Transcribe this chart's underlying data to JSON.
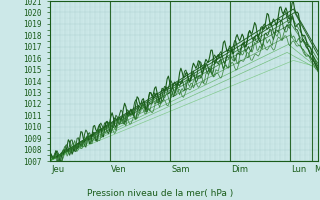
{
  "title": "Pression niveau de la mer( hPa )",
  "ylim": [
    1007,
    1021
  ],
  "yticks": [
    1007,
    1008,
    1009,
    1010,
    1011,
    1012,
    1013,
    1014,
    1015,
    1016,
    1017,
    1018,
    1019,
    1020,
    1021
  ],
  "x_day_labels": [
    "Jeu",
    "Ven",
    "Sam",
    "Dim",
    "Lun",
    "Ma"
  ],
  "x_day_positions": [
    0,
    48,
    96,
    144,
    192,
    210
  ],
  "n_points": 216,
  "bg_color": "#cce8e8",
  "grid_color_major": "#aacece",
  "grid_color_minor": "#bbdada",
  "line_color_dark": "#1a5c1a",
  "line_color_mid": "#2d7a2d",
  "line_color_light": "#4aaa4a",
  "border_color": "#1a5c1a",
  "label_color": "#1a5c1a",
  "tick_label_fontsize": 5.5,
  "xlabel_fontsize": 6.0,
  "title_fontsize": 6.5
}
